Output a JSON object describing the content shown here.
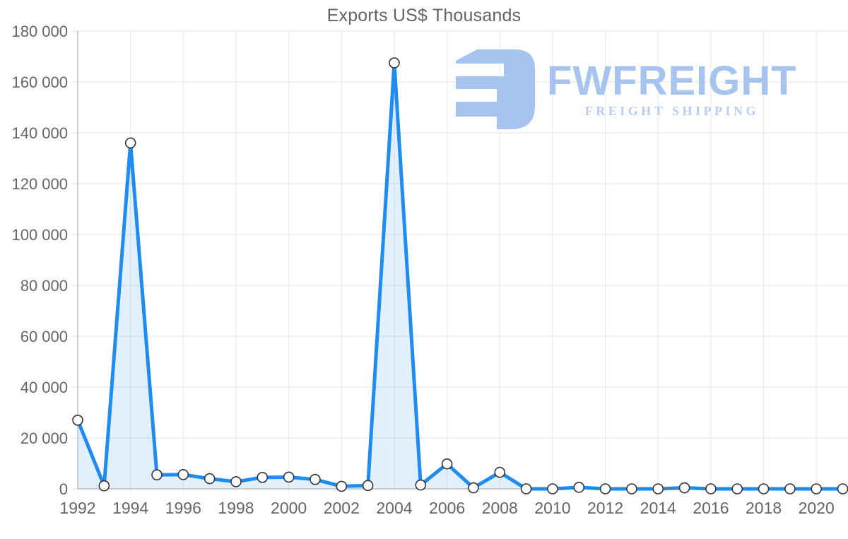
{
  "title": "Exports US$ Thousands",
  "watermark": {
    "brand": "FWFREIGHT",
    "tagline": "FREIGHT SHIPPING",
    "logo_color": "#a7c4f0",
    "tagline_color": "#b7cdf3"
  },
  "theme": {
    "background": "#ffffff",
    "text_color": "#666666",
    "grid_h_color": "#e3e3e3",
    "grid_v_color": "#e9e9e9",
    "axis_color": "#b5b5b5"
  },
  "chart_data": {
    "type": "area",
    "title": "Exports US$ Thousands",
    "xlabel": "",
    "ylabel": "",
    "x": [
      1992,
      1993,
      1994,
      1995,
      1996,
      1997,
      1998,
      1999,
      2000,
      2001,
      2002,
      2003,
      2004,
      2005,
      2006,
      2007,
      2008,
      2009,
      2010,
      2011,
      2012,
      2013,
      2014,
      2015,
      2016,
      2017,
      2018,
      2019,
      2020,
      2021
    ],
    "values": [
      27000,
      1200,
      136000,
      5500,
      5600,
      4000,
      2800,
      4500,
      4600,
      3700,
      1000,
      1300,
      167500,
      1500,
      9800,
      400,
      6500,
      0,
      0,
      600,
      0,
      0,
      0,
      400,
      0,
      0,
      0,
      0,
      0,
      0
    ],
    "ylim": [
      0,
      180000
    ],
    "ytick_step": 20000,
    "xtick_step": 2,
    "grid": true,
    "legend": "none",
    "y_tick_labels": [
      "0",
      "20 000",
      "40 000",
      "60 000",
      "80 000",
      "100 000",
      "120 000",
      "140 000",
      "160 000",
      "180 000"
    ],
    "x_tick_labels": [
      "1992",
      "1994",
      "1996",
      "1998",
      "2000",
      "2002",
      "2004",
      "2006",
      "2008",
      "2010",
      "2012",
      "2014",
      "2016",
      "2018",
      "2020"
    ],
    "line_color": "#1e8cf0",
    "fill_color": "rgba(30,140,240,0.13)",
    "marker_fill": "#ffffff",
    "marker_stroke": "#333333"
  }
}
